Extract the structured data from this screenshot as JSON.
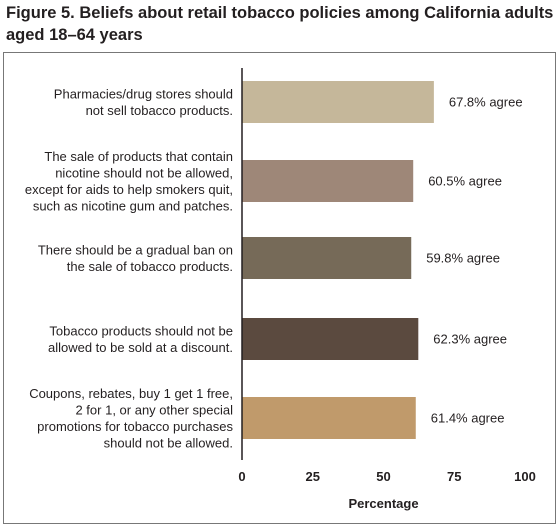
{
  "figure": {
    "title": "Figure 5. Beliefs about retail tobacco policies among California adults aged 18–64 years"
  },
  "chart_data": {
    "type": "bar",
    "orientation": "horizontal",
    "categories": [
      [
        "Pharmacies/drug stores should",
        "not sell tobacco products."
      ],
      [
        "The sale of products that contain",
        "nicotine should not be allowed,",
        "except for aids to help smokers quit,",
        "such as nicotine gum and patches."
      ],
      [
        "There should be a gradual ban on",
        "the sale of tobacco products."
      ],
      [
        "Tobacco products should not be",
        "allowed to be sold at a discount."
      ],
      [
        "Coupons, rebates, buy 1 get 1 free,",
        "2 for 1, or any other special",
        "promotions for tobacco purchases",
        "should not be allowed."
      ]
    ],
    "values": [
      67.8,
      60.5,
      59.8,
      62.3,
      61.4
    ],
    "value_labels": [
      "67.8% agree",
      "60.5% agree",
      "59.8% agree",
      "62.3% agree",
      "61.4% agree"
    ],
    "colors": [
      "#c5b79a",
      "#9e8778",
      "#766a58",
      "#5b4a3f",
      "#c09a6b"
    ],
    "xlabel": "Percentage",
    "xlim": [
      0,
      100
    ],
    "xticks": [
      "0",
      "25",
      "50",
      "75",
      "100"
    ],
    "grid": false,
    "legend": "none"
  }
}
